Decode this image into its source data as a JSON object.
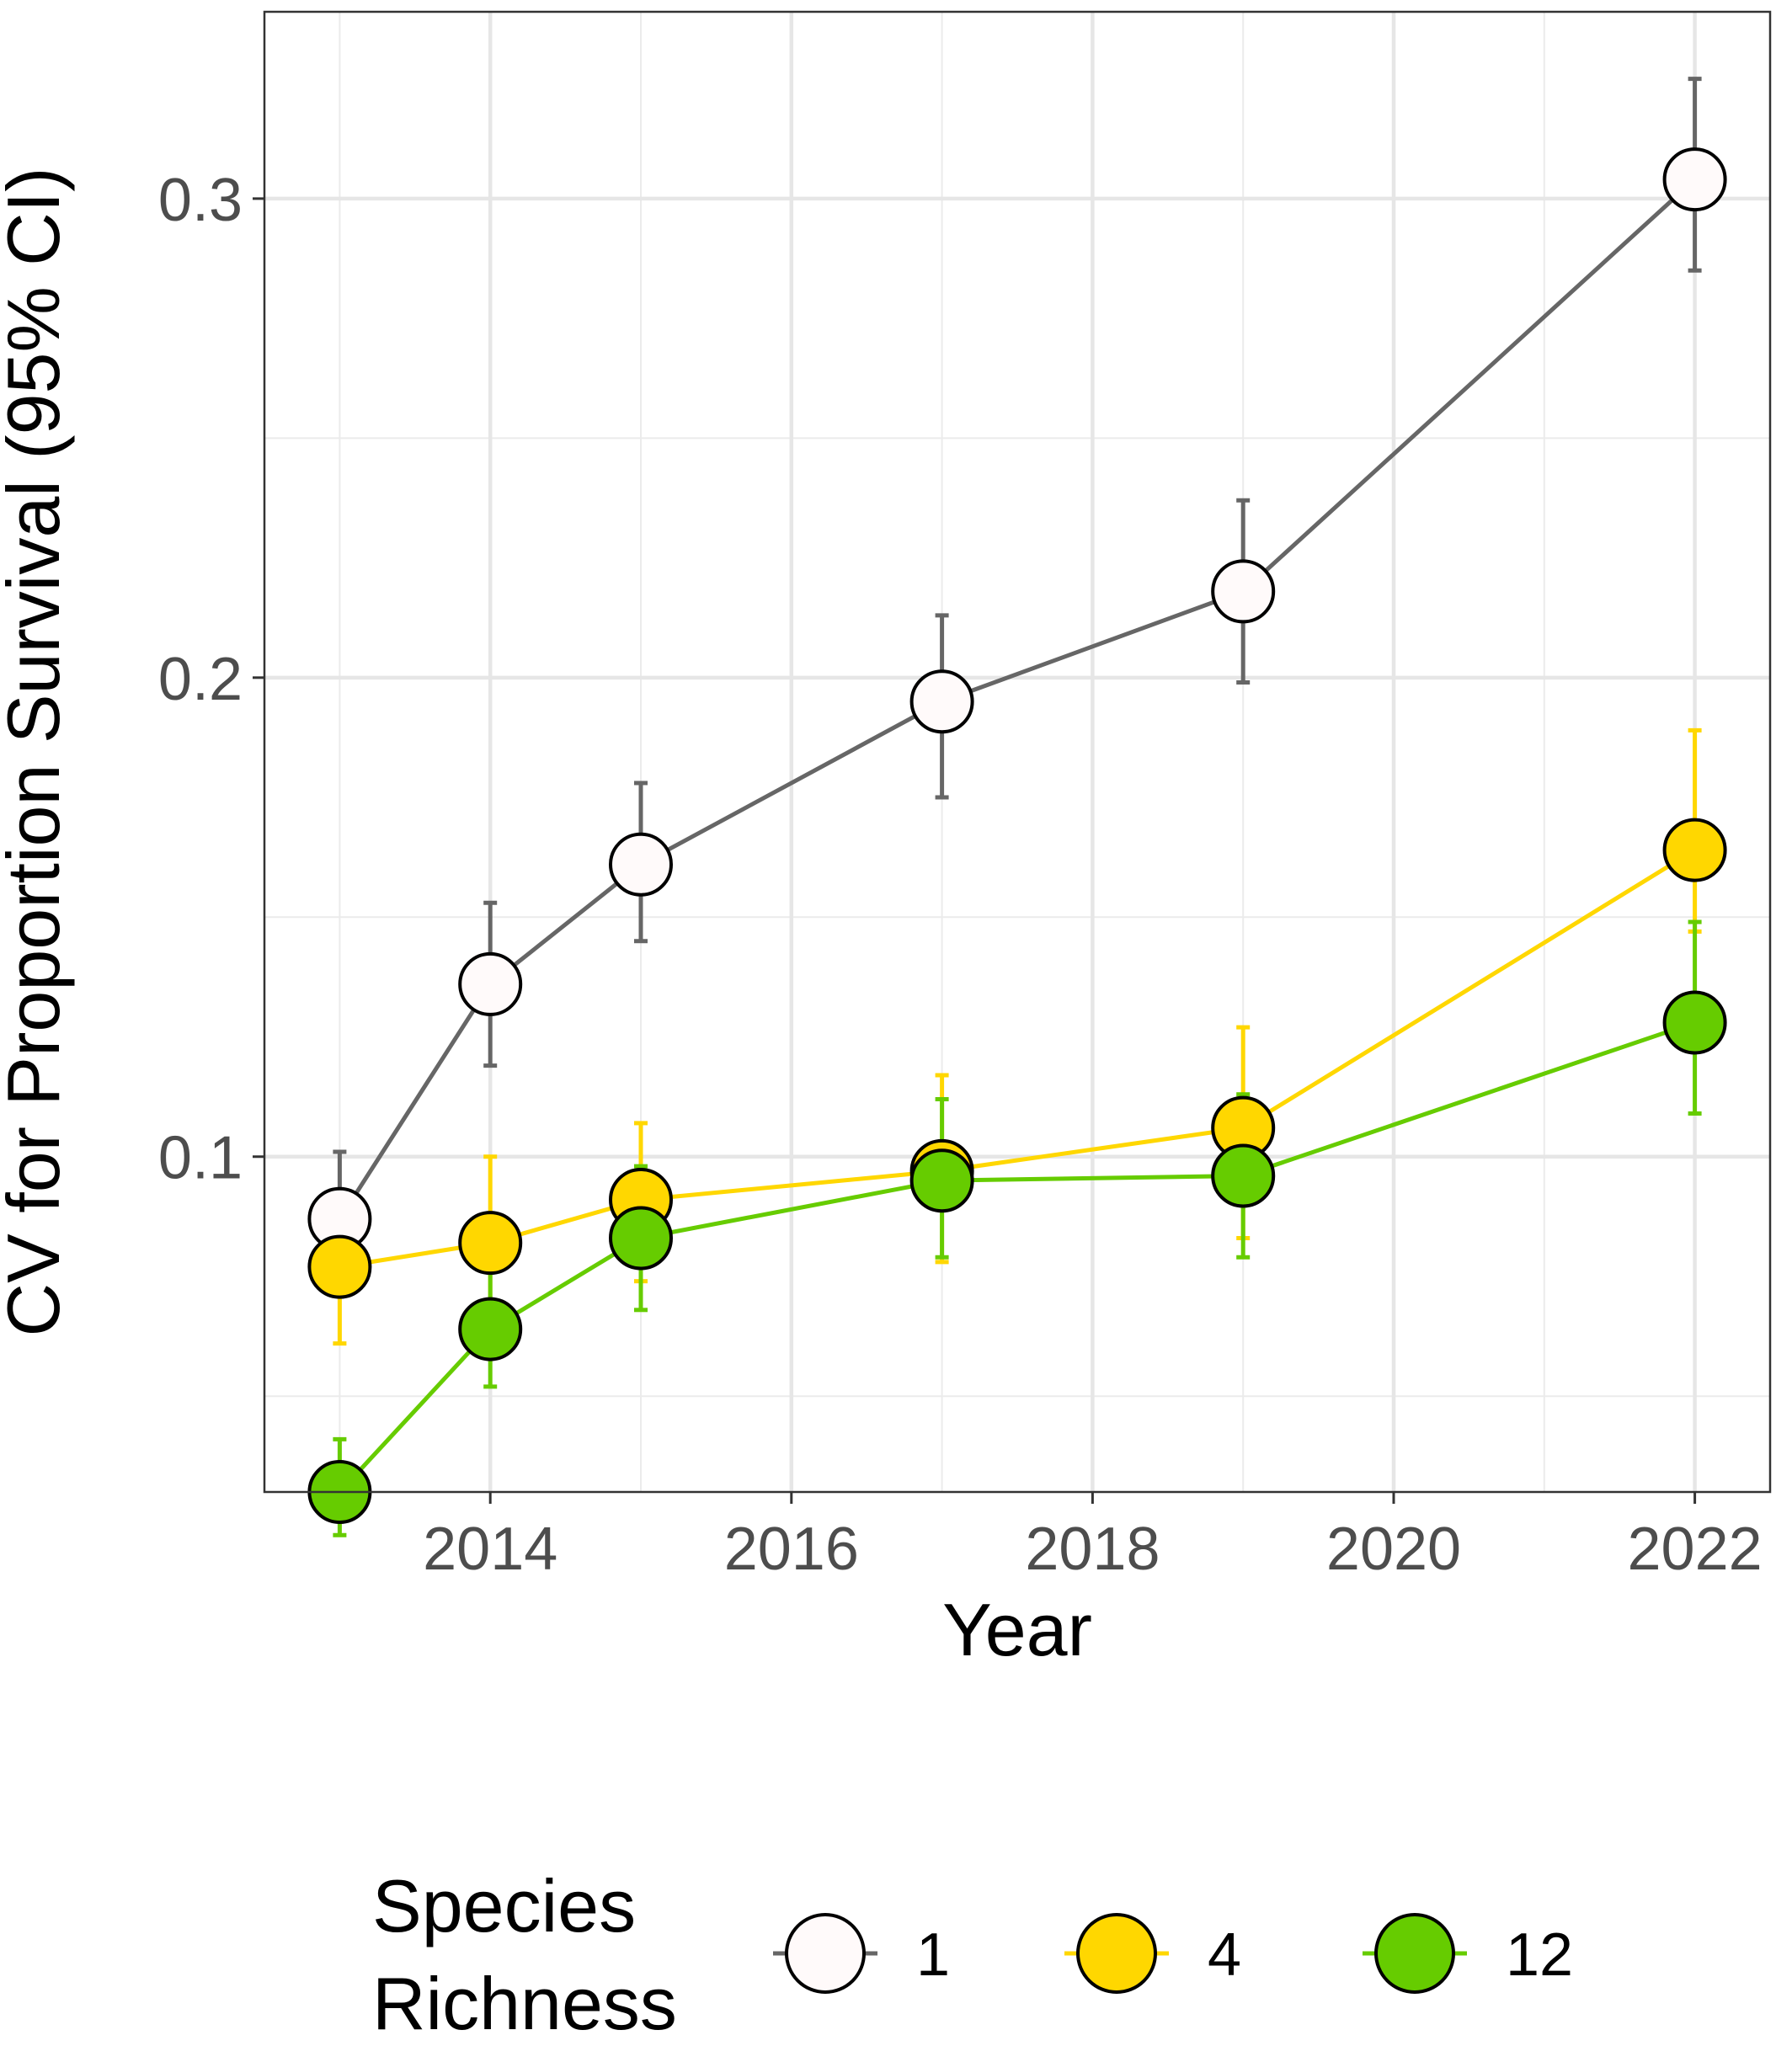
{
  "chart_data": {
    "type": "line",
    "xlabel": "Year",
    "ylabel": "CV for Proportion Survival (95% CI)",
    "xlim": [
      2012.5,
      2022.5
    ],
    "ylim": [
      0.03,
      0.339
    ],
    "x_ticks": [
      2014,
      2016,
      2018,
      2020,
      2022
    ],
    "x_tick_labels": [
      "2014",
      "2016",
      "2018",
      "2020",
      "2022"
    ],
    "y_ticks": [
      0.1,
      0.2,
      0.3
    ],
    "y_tick_labels": [
      "0.1",
      "0.2",
      "0.3"
    ],
    "grid": true,
    "legend": {
      "title_lines": [
        "Species",
        "Richness"
      ],
      "placement": "bottom"
    },
    "series": [
      {
        "name": "1",
        "color": "#666666",
        "fill": "#fffafa",
        "x": [
          2013,
          2014,
          2015,
          2017,
          2019,
          2022
        ],
        "y": [
          0.087,
          0.136,
          0.161,
          0.195,
          0.218,
          0.304
        ],
        "ci_low": [
          0.074,
          0.119,
          0.145,
          0.175,
          0.199,
          0.285
        ],
        "ci_high": [
          0.101,
          0.153,
          0.178,
          0.213,
          0.237,
          0.325
        ]
      },
      {
        "name": "4",
        "color": "#ffd700",
        "fill": "#ffd700",
        "x": [
          2013,
          2014,
          2015,
          2017,
          2019,
          2022
        ],
        "y": [
          0.077,
          0.082,
          0.091,
          0.097,
          0.106,
          0.164
        ],
        "ci_low": [
          0.061,
          0.067,
          0.074,
          0.078,
          0.083,
          0.147
        ],
        "ci_high": [
          0.091,
          0.1,
          0.107,
          0.117,
          0.127,
          0.189
        ]
      },
      {
        "name": "12",
        "color": "#66cc00",
        "fill": "#66cc00",
        "x": [
          2013,
          2014,
          2015,
          2017,
          2019,
          2022
        ],
        "y": [
          0.03,
          0.064,
          0.083,
          0.095,
          0.096,
          0.128
        ],
        "ci_low": [
          0.021,
          0.052,
          0.068,
          0.079,
          0.079,
          0.109
        ],
        "ci_high": [
          0.041,
          0.076,
          0.098,
          0.112,
          0.113,
          0.149
        ]
      }
    ]
  }
}
